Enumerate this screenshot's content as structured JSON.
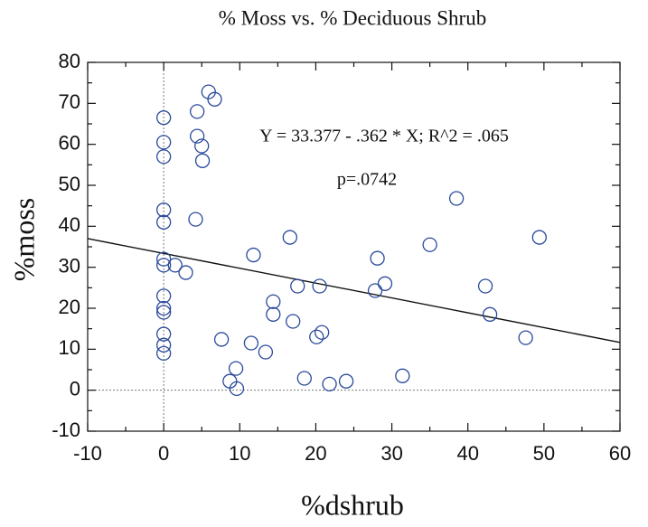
{
  "chart_data": {
    "type": "scatter",
    "title": "% Moss vs. % Deciduous Shrub",
    "xlabel": "%dshrub",
    "ylabel": "%moss",
    "annotations": [
      "Y = 33.377 - .362 * X; R^2 = .065",
      "p=.0742"
    ],
    "trendline": {
      "intercept": 33.377,
      "slope": -0.362
    },
    "color": "#2a4a9a",
    "xlim": [
      -10,
      60
    ],
    "xticks": [
      -10,
      0,
      10,
      20,
      30,
      40,
      50,
      60
    ],
    "ylim": [
      -10,
      80
    ],
    "yticks": [
      -10,
      0,
      10,
      20,
      30,
      40,
      50,
      60,
      70,
      80
    ],
    "x": [
      0,
      0,
      0,
      0,
      0,
      0,
      0,
      0,
      0,
      0,
      0,
      0,
      0,
      1.5,
      2.9,
      4.2,
      4.4,
      4.4,
      5,
      5.1,
      5.9,
      6.7,
      7.6,
      8.7,
      9.5,
      9.6,
      11.5,
      11.8,
      13.4,
      14.4,
      14.4,
      16.6,
      17,
      17.6,
      18.5,
      20.1,
      20.5,
      20.8,
      21.8,
      24,
      27.8,
      28.1,
      29.1,
      31.4,
      35,
      38.5,
      42.3,
      42.9,
      47.6,
      49.4
    ],
    "values": [
      66.5,
      60.5,
      57,
      44,
      41,
      32,
      30.5,
      23,
      20,
      19,
      13.7,
      11,
      9,
      30.5,
      28.7,
      41.7,
      68,
      62,
      59.6,
      56,
      72.8,
      71,
      12.4,
      2.2,
      5.3,
      0.4,
      11.5,
      33,
      9.3,
      21.6,
      18.5,
      37.3,
      16.8,
      25.4,
      2.9,
      13,
      25.4,
      14.1,
      1.5,
      2.2,
      24.3,
      32.2,
      26,
      3.5,
      35.5,
      46.8,
      25.4,
      18.5,
      12.8,
      37.3
    ]
  }
}
